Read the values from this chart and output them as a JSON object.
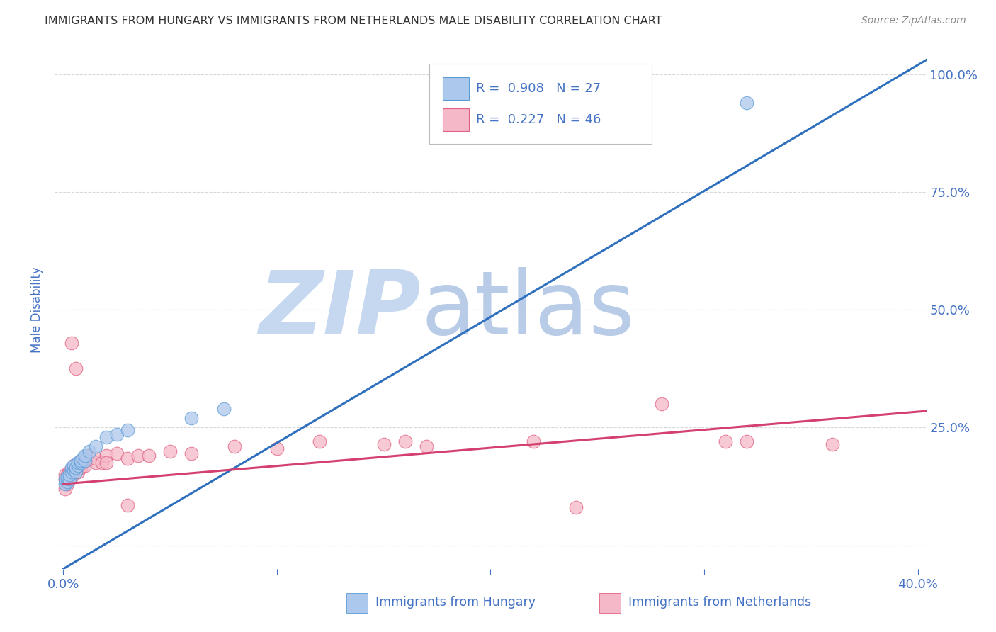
{
  "title": "IMMIGRANTS FROM HUNGARY VS IMMIGRANTS FROM NETHERLANDS MALE DISABILITY CORRELATION CHART",
  "source": "Source: ZipAtlas.com",
  "ylabel_label": "Male Disability",
  "hungary_R": 0.908,
  "hungary_N": 27,
  "netherlands_R": 0.227,
  "netherlands_N": 46,
  "hungary_color": "#adc8ed",
  "hungary_edge_color": "#5b9bd5",
  "hungary_line_color": "#2e6fbe",
  "netherlands_color": "#f5b8c8",
  "netherlands_edge_color": "#e06080",
  "netherlands_line_color": "#d44070",
  "watermark_zip": "ZIP",
  "watermark_atlas": "atlas",
  "watermark_color_zip": "#c5d8f0",
  "watermark_color_atlas": "#b8cce8",
  "background_color": "#ffffff",
  "grid_color": "#d8d8d8",
  "title_color": "#333333",
  "axis_label_color": "#4472c4",
  "source_color": "#888888",
  "xlim": [
    -0.004,
    0.404
  ],
  "ylim": [
    -0.05,
    1.05
  ],
  "hungary_line_x0": 0.0,
  "hungary_line_y0": -0.05,
  "hungary_line_x1": 0.404,
  "hungary_line_y1": 1.03,
  "netherlands_line_x0": 0.0,
  "netherlands_line_y0": 0.13,
  "netherlands_line_x1": 0.404,
  "netherlands_line_y1": 0.285,
  "hungary_x": [
    0.001,
    0.001,
    0.002,
    0.002,
    0.003,
    0.003,
    0.004,
    0.004,
    0.005,
    0.005,
    0.006,
    0.006,
    0.007,
    0.007,
    0.008,
    0.008,
    0.009,
    0.01,
    0.01,
    0.012,
    0.015,
    0.02,
    0.025,
    0.03,
    0.06,
    0.075,
    0.32
  ],
  "hungary_y": [
    0.13,
    0.14,
    0.135,
    0.145,
    0.14,
    0.15,
    0.155,
    0.165,
    0.16,
    0.17,
    0.155,
    0.165,
    0.17,
    0.175,
    0.175,
    0.18,
    0.185,
    0.18,
    0.19,
    0.2,
    0.21,
    0.23,
    0.235,
    0.245,
    0.27,
    0.29,
    0.94
  ],
  "netherlands_x": [
    0.001,
    0.001,
    0.001,
    0.002,
    0.002,
    0.003,
    0.003,
    0.004,
    0.004,
    0.005,
    0.005,
    0.006,
    0.007,
    0.007,
    0.008,
    0.008,
    0.009,
    0.01,
    0.01,
    0.012,
    0.015,
    0.015,
    0.018,
    0.02,
    0.025,
    0.03,
    0.035,
    0.04,
    0.05,
    0.06,
    0.08,
    0.1,
    0.12,
    0.15,
    0.16,
    0.17,
    0.22,
    0.24,
    0.28,
    0.31,
    0.32,
    0.36,
    0.004,
    0.006,
    0.02,
    0.03
  ],
  "netherlands_y": [
    0.12,
    0.14,
    0.15,
    0.13,
    0.15,
    0.14,
    0.155,
    0.145,
    0.16,
    0.155,
    0.17,
    0.16,
    0.155,
    0.17,
    0.165,
    0.18,
    0.175,
    0.17,
    0.185,
    0.19,
    0.175,
    0.185,
    0.175,
    0.19,
    0.195,
    0.185,
    0.19,
    0.19,
    0.2,
    0.195,
    0.21,
    0.205,
    0.22,
    0.215,
    0.22,
    0.21,
    0.22,
    0.08,
    0.3,
    0.22,
    0.22,
    0.215,
    0.43,
    0.375,
    0.175,
    0.085
  ]
}
